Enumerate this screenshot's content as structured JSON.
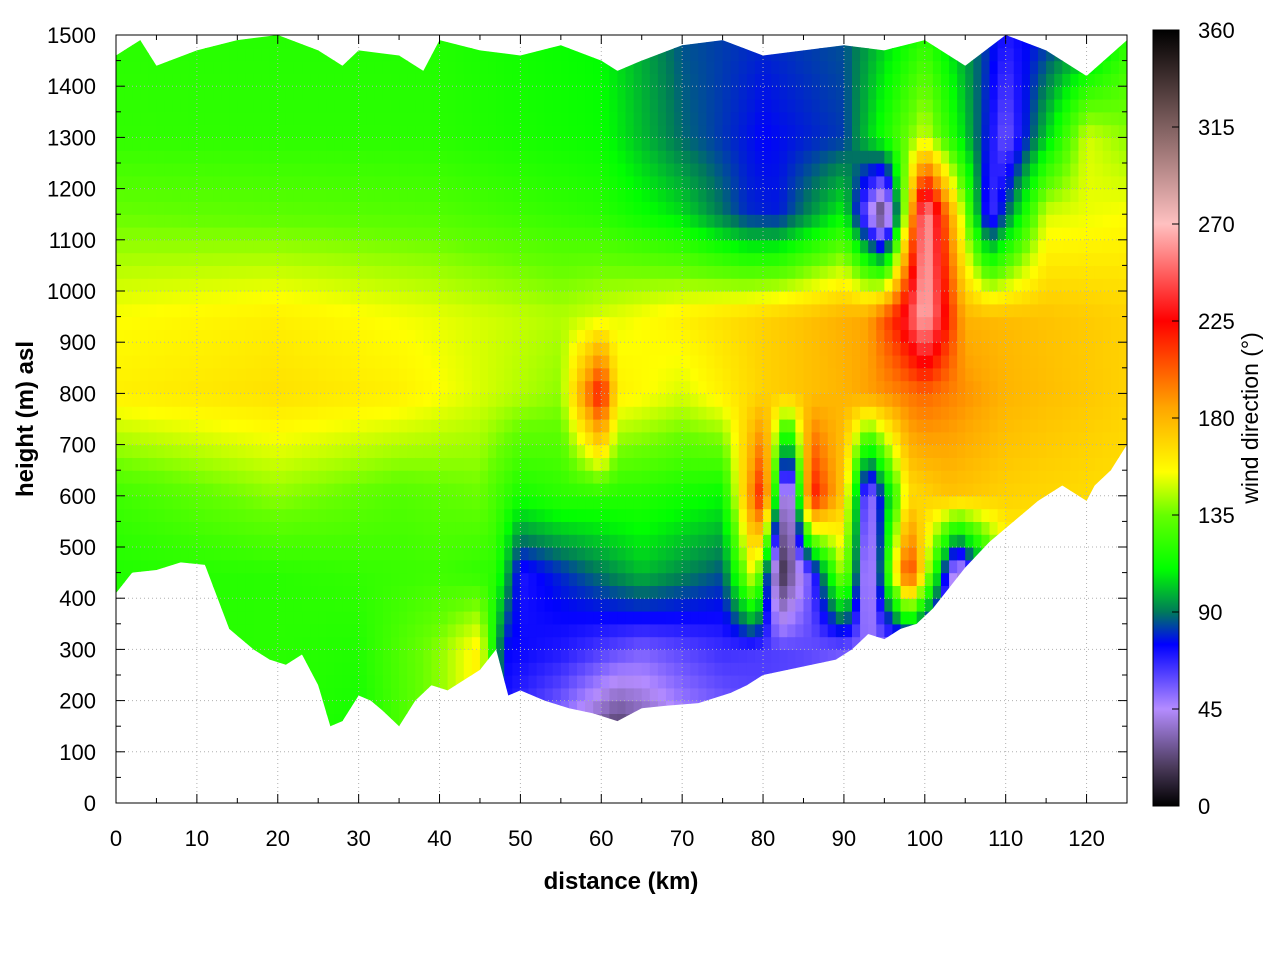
{
  "chart_data": {
    "type": "heatmap",
    "title": "",
    "xlabel": "distance (km)",
    "ylabel": "height (m) asl",
    "xlim": [
      0,
      125
    ],
    "ylim": [
      0,
      1500
    ],
    "x_ticks": [
      0,
      10,
      20,
      30,
      40,
      50,
      60,
      70,
      80,
      90,
      100,
      110,
      120
    ],
    "y_ticks": [
      0,
      100,
      200,
      300,
      400,
      500,
      600,
      700,
      800,
      900,
      1000,
      1100,
      1200,
      1300,
      1400,
      1500
    ],
    "grid": true,
    "colorbar": {
      "label": "wind direction (°)",
      "range": [
        0,
        360
      ],
      "ticks": [
        0,
        45,
        90,
        135,
        180,
        225,
        270,
        315,
        360
      ],
      "stops": [
        {
          "value": 0,
          "color": "#000000"
        },
        {
          "value": 18,
          "color": "#4a3a5a"
        },
        {
          "value": 45,
          "color": "#b48cff"
        },
        {
          "value": 75,
          "color": "#0000ff"
        },
        {
          "value": 90,
          "color": "#007a5a"
        },
        {
          "value": 110,
          "color": "#00ff00"
        },
        {
          "value": 135,
          "color": "#66ff00"
        },
        {
          "value": 155,
          "color": "#ffff00"
        },
        {
          "value": 185,
          "color": "#ffa500"
        },
        {
          "value": 225,
          "color": "#ff0000"
        },
        {
          "value": 270,
          "color": "#ffc0c0"
        },
        {
          "value": 315,
          "color": "#806060"
        },
        {
          "value": 360,
          "color": "#000000"
        }
      ]
    },
    "terrain_height": {
      "distance": [
        0,
        2,
        5,
        8,
        11,
        14,
        17,
        19,
        21,
        23,
        25,
        26.5,
        28,
        30,
        31.5,
        33,
        35,
        37,
        39,
        41,
        43,
        45,
        47,
        48.5,
        50,
        53,
        56,
        59,
        62,
        65,
        68,
        72,
        76,
        78,
        80,
        83,
        86,
        89,
        91,
        93,
        95,
        97,
        99,
        101,
        103,
        105,
        108,
        111,
        114,
        117,
        120,
        121,
        123,
        125
      ],
      "height": [
        410,
        450,
        455,
        470,
        465,
        340,
        300,
        280,
        270,
        290,
        230,
        150,
        160,
        210,
        200,
        180,
        150,
        200,
        230,
        220,
        240,
        260,
        300,
        210,
        220,
        200,
        185,
        175,
        160,
        185,
        190,
        195,
        215,
        230,
        250,
        260,
        270,
        280,
        300,
        330,
        320,
        340,
        350,
        380,
        420,
        460,
        510,
        550,
        590,
        620,
        590,
        620,
        650,
        700
      ]
    },
    "data_top_height": {
      "distance": [
        0,
        3,
        5,
        10,
        15,
        20,
        25,
        28,
        30,
        35,
        38,
        40,
        45,
        50,
        55,
        60,
        62,
        65,
        70,
        75,
        80,
        85,
        90,
        95,
        100,
        105,
        110,
        115,
        120,
        125
      ],
      "height": [
        1460,
        1490,
        1440,
        1470,
        1490,
        1500,
        1470,
        1440,
        1470,
        1460,
        1430,
        1490,
        1470,
        1460,
        1480,
        1450,
        1430,
        1450,
        1480,
        1490,
        1460,
        1470,
        1480,
        1470,
        1490,
        1440,
        1500,
        1470,
        1420,
        1490
      ]
    },
    "field_rows": [
      {
        "height": 1500,
        "distance": [
          0,
          40,
          60,
          70,
          80,
          90,
          100,
          110,
          120,
          125
        ],
        "direction": [
          120,
          118,
          110,
          85,
          80,
          85,
          120,
          70,
          90,
          120
        ]
      },
      {
        "height": 1300,
        "distance": [
          0,
          40,
          60,
          70,
          80,
          90,
          100,
          110,
          120,
          125
        ],
        "direction": [
          122,
          120,
          112,
          88,
          75,
          82,
          150,
          55,
          150,
          140
        ]
      },
      {
        "height": 1150,
        "distance": [
          0,
          40,
          60,
          70,
          78,
          82,
          90,
          95,
          100,
          108,
          115,
          125
        ],
        "direction": [
          135,
          130,
          120,
          105,
          80,
          78,
          110,
          10,
          270,
          60,
          150,
          155
        ]
      },
      {
        "height": 950,
        "distance": [
          0,
          20,
          40,
          55,
          65,
          75,
          85,
          93,
          97,
          100,
          105,
          115,
          125
        ],
        "direction": [
          155,
          160,
          152,
          145,
          155,
          165,
          175,
          185,
          225,
          270,
          180,
          175,
          170
        ]
      },
      {
        "height": 800,
        "distance": [
          0,
          20,
          35,
          45,
          55,
          60,
          62,
          70,
          80,
          90,
          100,
          110,
          125
        ],
        "direction": [
          160,
          165,
          160,
          150,
          140,
          225,
          160,
          150,
          170,
          180,
          200,
          180,
          170
        ]
      },
      {
        "height": 600,
        "distance": [
          0,
          20,
          35,
          45,
          50,
          55,
          65,
          75,
          80,
          83,
          86,
          90,
          93,
          98,
          103,
          110,
          125
        ],
        "direction": [
          125,
          140,
          130,
          135,
          115,
          120,
          118,
          110,
          225,
          5,
          225,
          170,
          40,
          165,
          175,
          170,
          165
        ]
      },
      {
        "height": 450,
        "distance": [
          0,
          20,
          40,
          47,
          50,
          55,
          65,
          75,
          79,
          82,
          86,
          90,
          93,
          98,
          104,
          110,
          125
        ],
        "direction": [
          118,
          120,
          125,
          120,
          70,
          80,
          100,
          85,
          160,
          10,
          60,
          150,
          30,
          220,
          30,
          150,
          160
        ]
      },
      {
        "height": 300,
        "distance": [
          0,
          20,
          30,
          40,
          45,
          48,
          55,
          65,
          75,
          85,
          95,
          105,
          125
        ],
        "direction": [
          118,
          120,
          118,
          140,
          160,
          75,
          70,
          55,
          65,
          60,
          50,
          40,
          60
        ]
      },
      {
        "height": 150,
        "distance": [
          0,
          20,
          30,
          40,
          45,
          48,
          55,
          62,
          70,
          80,
          125
        ],
        "direction": [
          118,
          120,
          115,
          140,
          160,
          70,
          50,
          20,
          45,
          60,
          60
        ]
      }
    ]
  }
}
